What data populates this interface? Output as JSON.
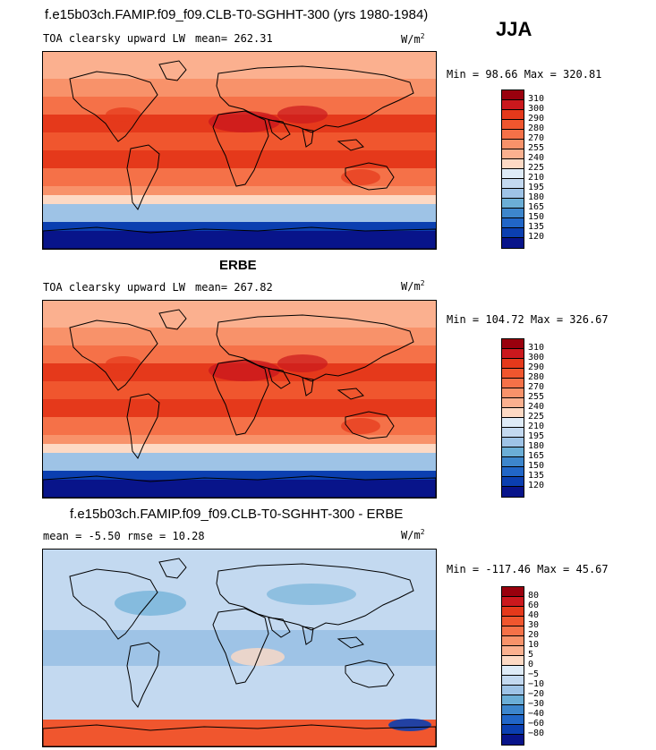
{
  "season": "JJA",
  "units_base": "W/m",
  "units_exp": "2",
  "panels": [
    {
      "title": "f.e15b03ch.FAMIP.f09_f09.CLB-T0-SGHHT-300 (yrs 1980-1984)",
      "variable": "TOA clearsky upward LW",
      "stats": "mean= 262.31",
      "minmax": "Min =  98.66 Max = 320.81",
      "kind": "abs"
    },
    {
      "title": "ERBE",
      "variable": "TOA clearsky upward LW",
      "stats": "mean= 267.82",
      "minmax": "Min = 104.72 Max = 326.67",
      "kind": "abs"
    },
    {
      "title": "f.e15b03ch.FAMIP.f09_f09.CLB-T0-SGHHT-300 - ERBE",
      "variable": "",
      "stats": "mean =  -5.50      rmse =  10.28",
      "minmax": "Min = -117.46 Max =  45.67",
      "kind": "diff"
    }
  ],
  "chart_data": [
    {
      "type": "heatmap",
      "title": "f.e15b03ch.FAMIP.f09_f09.CLB-T0-SGHHT-300 (yrs 1980-1984)",
      "subtitle": "TOA clearsky upward LW",
      "units": "W/m2",
      "mean": 262.31,
      "min": 98.66,
      "max": 320.81,
      "colorbar_levels": [
        "310",
        "300",
        "290",
        "280",
        "270",
        "255",
        "240",
        "225",
        "210",
        "195",
        "180",
        "165",
        "150",
        "135",
        "120"
      ],
      "colorbar_colors": [
        "#99000d",
        "#cb181d",
        "#e5391b",
        "#f0562e",
        "#f57148",
        "#f8926a",
        "#fbb08f",
        "#fdd9c4",
        "#deebf7",
        "#c3d9f0",
        "#9ec3e6",
        "#6baed6",
        "#3d86cc",
        "#2166c7",
        "#0b3fb0",
        "#08148a"
      ]
    },
    {
      "type": "heatmap",
      "title": "ERBE",
      "subtitle": "TOA clearsky upward LW",
      "units": "W/m2",
      "mean": 267.82,
      "min": 104.72,
      "max": 326.67,
      "colorbar_levels": [
        "310",
        "300",
        "290",
        "280",
        "270",
        "255",
        "240",
        "225",
        "210",
        "195",
        "180",
        "165",
        "150",
        "135",
        "120"
      ],
      "colorbar_colors": [
        "#99000d",
        "#cb181d",
        "#e5391b",
        "#f0562e",
        "#f57148",
        "#f8926a",
        "#fbb08f",
        "#fdd9c4",
        "#deebf7",
        "#c3d9f0",
        "#9ec3e6",
        "#6baed6",
        "#3d86cc",
        "#2166c7",
        "#0b3fb0",
        "#08148a"
      ]
    },
    {
      "type": "heatmap",
      "title": "f.e15b03ch.FAMIP.f09_f09.CLB-T0-SGHHT-300 - ERBE",
      "units": "W/m2",
      "mean": -5.5,
      "rmse": 10.28,
      "min": -117.46,
      "max": 45.67,
      "colorbar_levels": [
        "80",
        "60",
        "40",
        "30",
        "20",
        "10",
        "5",
        "0",
        "−5",
        "−10",
        "−20",
        "−30",
        "−40",
        "−60",
        "−80"
      ],
      "colorbar_colors": [
        "#99000d",
        "#cb181d",
        "#e5391b",
        "#f0562e",
        "#f57148",
        "#f8926a",
        "#fbb08f",
        "#fdd9c4",
        "#deebf7",
        "#c3d9f0",
        "#9ec3e6",
        "#6baed6",
        "#3d86cc",
        "#2166c7",
        "#0b3fb0",
        "#08148a"
      ]
    }
  ]
}
